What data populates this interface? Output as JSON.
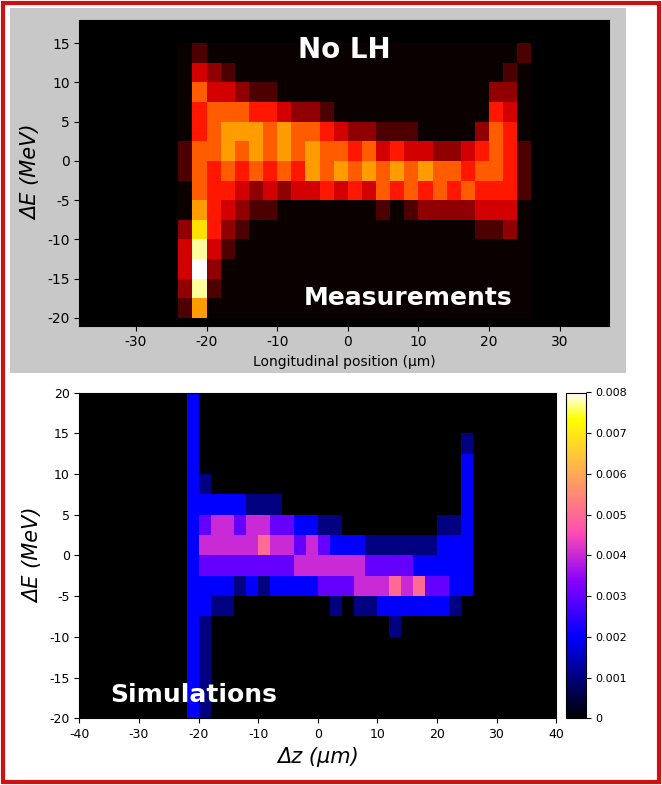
{
  "chart_data": [
    {
      "type": "heatmap",
      "annotations": [
        "No LH",
        "Measurements"
      ],
      "x_label": "Longitudinal position (μm)",
      "y_label": "ΔE (MeV)",
      "xlim": [
        -38,
        37
      ],
      "xticks": [
        -30,
        -20,
        -10,
        0,
        10,
        20,
        30
      ],
      "ylim": [
        -21,
        18
      ],
      "yticks": [
        -20,
        -15,
        -10,
        -5,
        0,
        5,
        10,
        15
      ],
      "x_edges": [
        -24,
        -22,
        -20,
        -18,
        -16,
        -14,
        -12,
        -10,
        -8,
        -6,
        -4,
        -2,
        0,
        2,
        4,
        6,
        8,
        10,
        12,
        14,
        16,
        18,
        20,
        22,
        24,
        26
      ],
      "y_edges": [
        -20,
        -17.5,
        -15,
        -12.5,
        -10,
        -7.5,
        -5,
        -2.5,
        0,
        2.5,
        5,
        7.5,
        10,
        12.5,
        15
      ],
      "cells": [
        [
          1,
          6,
          0,
          0,
          0,
          0,
          0,
          0,
          0,
          0,
          0,
          0,
          0,
          0,
          0,
          0,
          0,
          0,
          0,
          0,
          0,
          0,
          0,
          0,
          0
        ],
        [
          2,
          9,
          1,
          0,
          0,
          0,
          0,
          0,
          0,
          0,
          0,
          0,
          0,
          0,
          0,
          0,
          0,
          0,
          0,
          0,
          0,
          0,
          0,
          0,
          0
        ],
        [
          3,
          10,
          2,
          0,
          0,
          0,
          0,
          0,
          0,
          0,
          0,
          0,
          0,
          0,
          0,
          0,
          0,
          0,
          0,
          0,
          0,
          0,
          0,
          0,
          0
        ],
        [
          3,
          9,
          3,
          1,
          0,
          0,
          0,
          0,
          0,
          0,
          0,
          0,
          0,
          0,
          0,
          0,
          0,
          0,
          0,
          0,
          0,
          0,
          0,
          0,
          0
        ],
        [
          2,
          7,
          4,
          2,
          1,
          0,
          0,
          0,
          0,
          0,
          0,
          0,
          0,
          0,
          0,
          0,
          0,
          0,
          0,
          0,
          0,
          1,
          1,
          2,
          0
        ],
        [
          0,
          6,
          4,
          3,
          2,
          1,
          1,
          0,
          0,
          0,
          0,
          0,
          0,
          0,
          1,
          0,
          1,
          2,
          2,
          2,
          2,
          3,
          3,
          3,
          0
        ],
        [
          0,
          5,
          4,
          4,
          3,
          2,
          3,
          2,
          3,
          3,
          4,
          3,
          4,
          3,
          5,
          4,
          5,
          4,
          5,
          4,
          5,
          4,
          4,
          4,
          1
        ],
        [
          1,
          5,
          4,
          5,
          4,
          5,
          4,
          5,
          4,
          6,
          5,
          6,
          5,
          6,
          5,
          6,
          5,
          6,
          5,
          5,
          4,
          5,
          5,
          4,
          1
        ],
        [
          1,
          5,
          5,
          6,
          5,
          6,
          5,
          6,
          5,
          6,
          5,
          5,
          4,
          5,
          3,
          4,
          3,
          3,
          2,
          2,
          3,
          4,
          5,
          4,
          1
        ],
        [
          0,
          4,
          5,
          6,
          6,
          6,
          5,
          6,
          5,
          5,
          4,
          3,
          2,
          2,
          1,
          1,
          1,
          0,
          0,
          0,
          0,
          2,
          5,
          4,
          0
        ],
        [
          0,
          4,
          5,
          5,
          5,
          4,
          4,
          3,
          2,
          2,
          1,
          0,
          0,
          0,
          0,
          0,
          0,
          0,
          0,
          0,
          0,
          0,
          4,
          3,
          0
        ],
        [
          0,
          5,
          3,
          3,
          2,
          1,
          1,
          0,
          0,
          0,
          0,
          0,
          0,
          0,
          0,
          0,
          0,
          0,
          0,
          0,
          0,
          0,
          2,
          2,
          0
        ],
        [
          0,
          3,
          2,
          1,
          0,
          0,
          0,
          0,
          0,
          0,
          0,
          0,
          0,
          0,
          0,
          0,
          0,
          0,
          0,
          0,
          0,
          0,
          0,
          1,
          0
        ],
        [
          0,
          1,
          0,
          0,
          0,
          0,
          0,
          0,
          0,
          0,
          0,
          0,
          0,
          0,
          0,
          0,
          0,
          0,
          0,
          0,
          0,
          0,
          0,
          0,
          1
        ]
      ]
    },
    {
      "type": "heatmap",
      "annotations": [
        "Simulations"
      ],
      "x_label": "Δz (μm)",
      "y_label": "ΔE (MeV)",
      "xlim": [
        -40,
        40
      ],
      "xticks": [
        -40,
        -30,
        -20,
        -10,
        0,
        10,
        20,
        30,
        40
      ],
      "ylim": [
        -20,
        20
      ],
      "yticks": [
        -20,
        -15,
        -10,
        -5,
        0,
        5,
        10,
        15,
        20
      ],
      "x_edges": [
        -24,
        -22,
        -20,
        -18,
        -16,
        -14,
        -12,
        -10,
        -8,
        -6,
        -4,
        -2,
        0,
        2,
        4,
        6,
        8,
        10,
        12,
        14,
        16,
        18,
        20,
        22,
        24,
        26
      ],
      "y_edges": [
        -20,
        -17.5,
        -15,
        -12.5,
        -10,
        -7.5,
        -5,
        -2.5,
        0,
        2.5,
        5,
        7.5,
        10,
        12.5,
        15,
        17.5,
        20
      ],
      "colorbar_range": [
        0,
        0.008
      ],
      "colorbar_ticks": [
        0,
        0.001,
        0.002,
        0.003,
        0.004,
        0.005,
        0.006,
        0.007,
        0.008
      ],
      "cells": [
        [
          0,
          0.002,
          0.001,
          0,
          0,
          0,
          0,
          0,
          0,
          0,
          0,
          0,
          0,
          0,
          0,
          0,
          0,
          0,
          0,
          0,
          0,
          0,
          0,
          0,
          0
        ],
        [
          0,
          0.002,
          0.001,
          0,
          0,
          0,
          0,
          0,
          0,
          0,
          0,
          0,
          0,
          0,
          0,
          0,
          0,
          0,
          0,
          0,
          0,
          0,
          0,
          0,
          0
        ],
        [
          0,
          0.002,
          0.001,
          0,
          0,
          0,
          0,
          0,
          0,
          0,
          0,
          0,
          0,
          0,
          0,
          0,
          0,
          0,
          0,
          0,
          0,
          0,
          0,
          0,
          0
        ],
        [
          0,
          0.002,
          0.001,
          0,
          0,
          0,
          0,
          0,
          0,
          0,
          0,
          0,
          0,
          0,
          0,
          0,
          0,
          0,
          0,
          0,
          0,
          0,
          0,
          0,
          0
        ],
        [
          0,
          0.002,
          0.001,
          0,
          0,
          0,
          0,
          0,
          0,
          0,
          0,
          0,
          0,
          0,
          0,
          0,
          0,
          0,
          0.001,
          0,
          0,
          0,
          0,
          0,
          0
        ],
        [
          0,
          0.002,
          0.002,
          0.001,
          0.001,
          0,
          0,
          0,
          0,
          0,
          0,
          0,
          0,
          0.001,
          0,
          0.001,
          0.001,
          0.002,
          0.002,
          0.002,
          0.002,
          0.002,
          0.002,
          0.001,
          0
        ],
        [
          0,
          0.002,
          0.002,
          0.002,
          0.002,
          0.001,
          0.002,
          0.001,
          0.002,
          0.002,
          0.002,
          0.002,
          0.003,
          0.003,
          0.003,
          0.004,
          0.004,
          0.004,
          0.005,
          0.004,
          0.005,
          0.003,
          0.003,
          0.002,
          0.002
        ],
        [
          0,
          0.002,
          0.003,
          0.003,
          0.003,
          0.003,
          0.003,
          0.003,
          0.003,
          0.003,
          0.004,
          0.004,
          0.004,
          0.004,
          0.004,
          0.004,
          0.003,
          0.003,
          0.003,
          0.003,
          0.002,
          0.002,
          0.002,
          0.002,
          0.002
        ],
        [
          0,
          0.002,
          0.004,
          0.004,
          0.004,
          0.004,
          0.004,
          0.005,
          0.004,
          0.004,
          0.003,
          0.004,
          0.003,
          0.002,
          0.002,
          0.002,
          0.001,
          0.001,
          0.001,
          0.001,
          0.001,
          0.001,
          0.002,
          0.002,
          0.002
        ],
        [
          0,
          0.002,
          0.003,
          0.004,
          0.004,
          0.003,
          0.004,
          0.004,
          0.003,
          0.003,
          0.002,
          0.002,
          0.001,
          0.001,
          0,
          0,
          0,
          0,
          0,
          0,
          0,
          0,
          0.001,
          0.001,
          0.002
        ],
        [
          0,
          0.002,
          0.002,
          0.002,
          0.002,
          0.002,
          0.001,
          0.001,
          0.001,
          0,
          0,
          0,
          0,
          0,
          0,
          0,
          0,
          0,
          0,
          0,
          0,
          0,
          0,
          0,
          0.002
        ],
        [
          0,
          0.002,
          0.001,
          0,
          0,
          0,
          0,
          0,
          0,
          0,
          0,
          0,
          0,
          0,
          0,
          0,
          0,
          0,
          0,
          0,
          0,
          0,
          0,
          0,
          0.002
        ],
        [
          0,
          0.002,
          0,
          0,
          0,
          0,
          0,
          0,
          0,
          0,
          0,
          0,
          0,
          0,
          0,
          0,
          0,
          0,
          0,
          0,
          0,
          0,
          0,
          0,
          0.002
        ],
        [
          0,
          0.002,
          0,
          0,
          0,
          0,
          0,
          0,
          0,
          0,
          0,
          0,
          0,
          0,
          0,
          0,
          0,
          0,
          0,
          0,
          0,
          0,
          0,
          0,
          0.001
        ],
        [
          0,
          0.002,
          0,
          0,
          0,
          0,
          0,
          0,
          0,
          0,
          0,
          0,
          0,
          0,
          0,
          0,
          0,
          0,
          0,
          0,
          0,
          0,
          0,
          0,
          0
        ],
        [
          0,
          0.002,
          0,
          0,
          0,
          0,
          0,
          0,
          0,
          0,
          0,
          0,
          0,
          0,
          0,
          0,
          0,
          0,
          0,
          0,
          0,
          0,
          0,
          0,
          0
        ]
      ]
    }
  ]
}
